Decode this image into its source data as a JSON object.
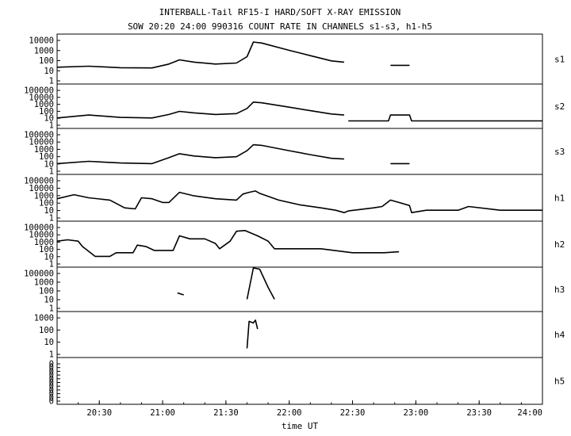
{
  "title_line1": "INTERBALL-Tail RF15-I HARD/SOFT X-RAY EMISSION",
  "title_line2": "SOW 20:20 24:00 990316  COUNT RATE IN CHANNELS s1-s3, h1-h5",
  "colors": {
    "background": "#ffffff",
    "ink": "#000000"
  },
  "chart_data": {
    "type": "line",
    "xlabel": "time UT",
    "x_range": [
      "20:10",
      "24:00"
    ],
    "x_tick_labels": [
      "20:30",
      "21:00",
      "21:30",
      "22:00",
      "22:30",
      "23:00",
      "23:30",
      "24:00"
    ],
    "y_scale": "log",
    "grid": false,
    "panels": [
      {
        "name": "s1",
        "y_tick_labels": [
          "10000",
          "1000",
          "100",
          "10",
          "1"
        ],
        "series": [
          {
            "points": [
              [
                "20:10",
                20
              ],
              [
                "20:25",
                25
              ],
              [
                "20:40",
                18
              ],
              [
                "20:55",
                17
              ],
              [
                "21:03",
                40
              ],
              [
                "21:08",
                100
              ],
              [
                "21:15",
                60
              ],
              [
                "21:25",
                40
              ],
              [
                "21:35",
                50
              ],
              [
                "21:40",
                200
              ],
              [
                "21:43",
                5000
              ],
              [
                "21:47",
                4000
              ],
              [
                "22:00",
                800
              ],
              [
                "22:10",
                250
              ],
              [
                "22:20",
                80
              ],
              [
                "22:26",
                60
              ]
            ]
          },
          {
            "points": [
              [
                "22:48",
                30
              ],
              [
                "22:57",
                30
              ]
            ]
          }
        ]
      },
      {
        "name": "s2",
        "y_tick_labels": [
          "100000",
          "10000",
          "1000",
          "100",
          "10",
          "1"
        ],
        "series": [
          {
            "points": [
              [
                "20:10",
                10
              ],
              [
                "20:25",
                25
              ],
              [
                "20:40",
                12
              ],
              [
                "20:55",
                10
              ],
              [
                "21:03",
                30
              ],
              [
                "21:08",
                80
              ],
              [
                "21:15",
                50
              ],
              [
                "21:25",
                30
              ],
              [
                "21:35",
                40
              ],
              [
                "21:40",
                200
              ],
              [
                "21:43",
                1500
              ],
              [
                "21:47",
                1200
              ],
              [
                "22:00",
                300
              ],
              [
                "22:10",
                100
              ],
              [
                "22:20",
                35
              ],
              [
                "22:26",
                25
              ]
            ]
          },
          {
            "points": [
              [
                "22:28",
                4
              ],
              [
                "22:47",
                4
              ],
              [
                "22:48",
                25
              ],
              [
                "22:57",
                25
              ],
              [
                "22:58",
                4
              ],
              [
                "24:00",
                4
              ]
            ]
          }
        ]
      },
      {
        "name": "s3",
        "y_tick_labels": [
          "100000",
          "10000",
          "1000",
          "100",
          "10",
          "1"
        ],
        "series": [
          {
            "points": [
              [
                "20:10",
                10
              ],
              [
                "20:25",
                20
              ],
              [
                "20:40",
                12
              ],
              [
                "20:55",
                10
              ],
              [
                "21:03",
                60
              ],
              [
                "21:08",
                200
              ],
              [
                "21:15",
                100
              ],
              [
                "21:25",
                60
              ],
              [
                "21:35",
                80
              ],
              [
                "21:40",
                500
              ],
              [
                "21:43",
                3000
              ],
              [
                "21:47",
                2500
              ],
              [
                "22:00",
                500
              ],
              [
                "22:10",
                150
              ],
              [
                "22:20",
                50
              ],
              [
                "22:26",
                40
              ]
            ]
          },
          {
            "points": [
              [
                "22:48",
                10
              ],
              [
                "22:57",
                10
              ]
            ]
          }
        ]
      },
      {
        "name": "h1",
        "y_tick_labels": [
          "100000",
          "10000",
          "1000",
          "100",
          "10",
          "1"
        ],
        "series": [
          {
            "points": [
              [
                "20:10",
                300
              ],
              [
                "20:18",
                1000
              ],
              [
                "20:25",
                400
              ],
              [
                "20:35",
                200
              ],
              [
                "20:42",
                20
              ],
              [
                "20:47",
                15
              ],
              [
                "20:50",
                400
              ],
              [
                "20:55",
                300
              ],
              [
                "21:00",
                100
              ],
              [
                "21:03",
                100
              ],
              [
                "21:08",
                2000
              ],
              [
                "21:15",
                700
              ],
              [
                "21:25",
                300
              ],
              [
                "21:35",
                200
              ],
              [
                "21:38",
                1200
              ],
              [
                "21:41",
                2000
              ],
              [
                "21:44",
                3000
              ],
              [
                "21:46",
                1500
              ],
              [
                "21:55",
                200
              ],
              [
                "22:05",
                50
              ],
              [
                "22:15",
                20
              ],
              [
                "22:22",
                10
              ],
              [
                "22:26",
                5
              ],
              [
                "22:28",
                8
              ],
              [
                "22:40",
                20
              ],
              [
                "22:44",
                30
              ],
              [
                "22:48",
                200
              ],
              [
                "22:52",
                100
              ],
              [
                "22:57",
                40
              ],
              [
                "22:58",
                5
              ],
              [
                "23:05",
                10
              ],
              [
                "23:20",
                10
              ],
              [
                "23:25",
                30
              ],
              [
                "23:40",
                10
              ],
              [
                "24:00",
                10
              ]
            ]
          }
        ]
      },
      {
        "name": "h2",
        "y_tick_labels": [
          "100000",
          "10000",
          "1000",
          "100",
          "10",
          "1"
        ],
        "series": [
          {
            "points": [
              [
                "20:10",
                1000
              ],
              [
                "20:15",
                1500
              ],
              [
                "20:20",
                1000
              ],
              [
                "20:22",
                200
              ],
              [
                "20:28",
                10
              ],
              [
                "20:35",
                10
              ],
              [
                "20:38",
                30
              ],
              [
                "20:46",
                30
              ],
              [
                "20:48",
                300
              ],
              [
                "20:52",
                200
              ],
              [
                "20:56",
                60
              ],
              [
                "21:05",
                60
              ],
              [
                "21:08",
                5000
              ],
              [
                "21:13",
                2000
              ],
              [
                "21:20",
                2000
              ],
              [
                "21:25",
                500
              ],
              [
                "21:27",
                100
              ],
              [
                "21:32",
                1000
              ],
              [
                "21:35",
                20000
              ],
              [
                "21:39",
                25000
              ],
              [
                "21:45",
                5000
              ],
              [
                "21:50",
                1000
              ],
              [
                "21:53",
                100
              ],
              [
                "22:00",
                100
              ],
              [
                "22:15",
                100
              ],
              [
                "22:30",
                30
              ],
              [
                "22:45",
                30
              ],
              [
                "22:52",
                40
              ]
            ]
          }
        ]
      },
      {
        "name": "h3",
        "y_tick_labels": [
          "100000",
          "1000",
          "100",
          "10",
          "1"
        ],
        "series": [
          {
            "points": [
              [
                "21:07",
                50
              ],
              [
                "21:10",
                30
              ]
            ]
          },
          {
            "points": [
              [
                "21:40",
                10
              ],
              [
                "21:43",
                50000
              ],
              [
                "21:46",
                20000
              ],
              [
                "21:50",
                200
              ],
              [
                "21:53",
                10
              ]
            ]
          }
        ]
      },
      {
        "name": "h4",
        "y_tick_labels": [
          "1000",
          "100",
          "10",
          "1"
        ],
        "series": [
          {
            "points": [
              [
                "21:40",
                3
              ],
              [
                "21:41",
                400
              ],
              [
                "21:43",
                300
              ],
              [
                "21:44",
                500
              ],
              [
                "21:45",
                100
              ]
            ]
          }
        ]
      },
      {
        "name": "h5",
        "y_tick_labels": [
          "0",
          "0",
          "0",
          "0",
          "0",
          "0",
          "0",
          "0",
          "0",
          "0",
          "0"
        ],
        "series": []
      }
    ]
  }
}
